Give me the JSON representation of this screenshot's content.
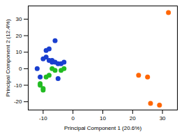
{
  "chart_data": {
    "type": "scatter",
    "xlabel": "Principal Component 1 (20.6%)",
    "ylabel": "Principal Component 2 (12.4%)",
    "xlim": [
      -15,
      35
    ],
    "ylim": [
      -25,
      38
    ],
    "xticks": [
      -10,
      0,
      10,
      20,
      30
    ],
    "yticks": [
      -20,
      -10,
      0,
      10,
      20,
      30
    ],
    "grid": false,
    "series": [
      {
        "color": "#1a3fcf",
        "x": [
          -12,
          -11,
          -10,
          -9,
          -9,
          -8,
          -8,
          -7,
          -7,
          -6,
          -6,
          -5,
          -5,
          -4,
          -3
        ],
        "values": [
          0,
          -5,
          6,
          7,
          11,
          12,
          5,
          5,
          4,
          17,
          4,
          3,
          -6,
          3,
          4
        ]
      },
      {
        "color": "#22bb22",
        "x": [
          -11,
          -11,
          -10,
          -10,
          -9,
          -8,
          -7,
          -6,
          -4,
          -3
        ],
        "values": [
          -9,
          -10,
          -13,
          -12,
          -5,
          -4,
          0,
          -1,
          -1,
          0
        ]
      },
      {
        "color": "#ff6600",
        "x": [
          32,
          22,
          25,
          26,
          29
        ],
        "values": [
          34,
          -4,
          -5,
          -21,
          -22
        ]
      }
    ]
  }
}
